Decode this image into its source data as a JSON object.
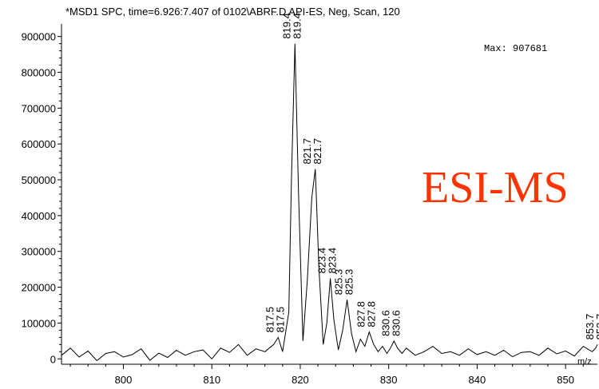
{
  "colors": {
    "line": "#000000",
    "overlay": "#ff3300"
  },
  "header": {
    "title": "*MSD1 SPC, time=6.926:7.407 of 0102\\ABRF.D    API-ES, Neg, Scan, 120",
    "max_label": "Max:  907681",
    "overlay": "ESI-MS"
  },
  "chart_data": {
    "type": "line",
    "xlabel": "m/z",
    "ylabel": "",
    "xlim": [
      793,
      853.6
    ],
    "ylim": [
      -15000,
      935000
    ],
    "x_ticks": [
      800,
      810,
      820,
      830,
      840,
      850
    ],
    "y_ticks": [
      0,
      100000,
      200000,
      300000,
      400000,
      500000,
      600000,
      700000,
      800000,
      900000
    ],
    "y_tick_labels": [
      "0",
      "100000",
      "200000",
      "300000",
      "400000",
      "500000",
      "600000",
      "700000",
      "800000",
      "900000"
    ],
    "x_tick_labels": [
      "800",
      "810",
      "820",
      "830",
      "840",
      "850"
    ],
    "grid": false,
    "peaks": [
      {
        "mz": 817.5,
        "intensity": 60000
      },
      {
        "mz": 819.4,
        "intensity": 880000
      },
      {
        "mz": 821.7,
        "intensity": 530000
      },
      {
        "mz": 823.4,
        "intensity": 225000
      },
      {
        "mz": 825.3,
        "intensity": 165000
      },
      {
        "mz": 827.8,
        "intensity": 75000
      },
      {
        "mz": 830.6,
        "intensity": 50000
      },
      {
        "mz": 853.7,
        "intensity": 40000
      }
    ],
    "peak_labels": [
      {
        "text": "817.5",
        "mz": 817.5,
        "intensity": 60000
      },
      {
        "text": "819.4",
        "mz": 819.4,
        "intensity": 880000
      },
      {
        "text": "821.7",
        "mz": 821.7,
        "intensity": 530000
      },
      {
        "text": "823.4",
        "mz": 823.4,
        "intensity": 225000
      },
      {
        "text": "825.3",
        "mz": 825.3,
        "intensity": 165000
      },
      {
        "text": "827.8",
        "mz": 827.8,
        "intensity": 75000
      },
      {
        "text": "830.6",
        "mz": 830.6,
        "intensity": 50000
      },
      {
        "text": "853.7",
        "mz": 853.7,
        "intensity": 40000
      }
    ],
    "series": [
      {
        "x": [
          793.0,
          794.0,
          795.0,
          796.0,
          797.0,
          798.0,
          799.0,
          800.0,
          801.0,
          802.0,
          803.0,
          804.0,
          805.0,
          806.0,
          807.0,
          808.0,
          809.0,
          810.0,
          811.0,
          812.0,
          813.0,
          814.0,
          815.0,
          816.0,
          817.0,
          817.5,
          818.0,
          818.7,
          819.0,
          819.4,
          819.8,
          820.3,
          820.8,
          821.3,
          821.7,
          822.1,
          822.6,
          823.0,
          823.4,
          823.8,
          824.3,
          824.8,
          825.3,
          825.8,
          826.3,
          826.8,
          827.3,
          827.8,
          828.3,
          828.8,
          829.3,
          829.8,
          830.2,
          830.6,
          831.0,
          831.5,
          832.0,
          833.0,
          834.0,
          835.0,
          836.0,
          837.0,
          838.0,
          839.0,
          840.0,
          841.0,
          842.0,
          843.0,
          844.0,
          845.0,
          846.0,
          847.0,
          848.0,
          849.0,
          850.0,
          851.0,
          852.0,
          853.0,
          853.4,
          853.6
        ],
        "y": [
          10000,
          30000,
          5000,
          22000,
          -5000,
          15000,
          20000,
          5000,
          12000,
          28000,
          -4000,
          16000,
          4000,
          24000,
          10000,
          20000,
          25000,
          0,
          30000,
          18000,
          40000,
          10000,
          28000,
          20000,
          40000,
          60000,
          20000,
          130000,
          500000,
          880000,
          470000,
          50000,
          220000,
          450000,
          530000,
          260000,
          40000,
          100000,
          225000,
          110000,
          25000,
          80000,
          165000,
          70000,
          20000,
          55000,
          35000,
          75000,
          40000,
          20000,
          35000,
          15000,
          30000,
          50000,
          30000,
          15000,
          30000,
          10000,
          20000,
          35000,
          15000,
          20000,
          10000,
          28000,
          12000,
          20000,
          10000,
          24000,
          6000,
          18000,
          20000,
          10000,
          30000,
          14000,
          22000,
          8000,
          35000,
          20000,
          30000,
          40000
        ]
      }
    ]
  }
}
